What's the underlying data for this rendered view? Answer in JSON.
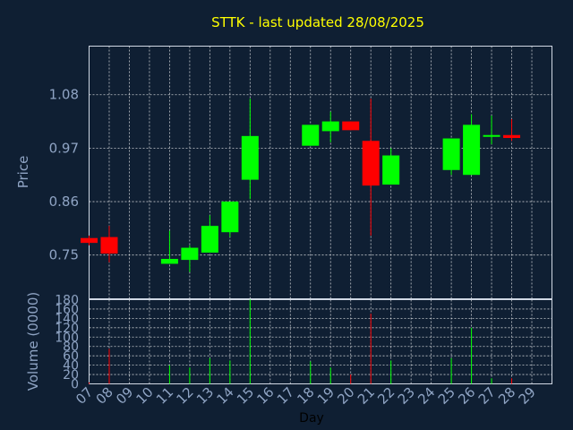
{
  "chart_data": {
    "type": "candlestick",
    "title": "STTK - last updated 28/08/2025",
    "price_axis": {
      "label": "Price",
      "ticks": [
        "0.75",
        "0.86",
        "0.97",
        "1.08"
      ],
      "tick_values": [
        0.75,
        0.86,
        0.97,
        1.08
      ],
      "ylim": [
        0.66,
        1.18
      ]
    },
    "volume_axis": {
      "label": "Volume (0000)",
      "ticks": [
        "0",
        "20",
        "40",
        "60",
        "80",
        "100",
        "120",
        "140",
        "160",
        "180"
      ],
      "tick_values": [
        0,
        20,
        40,
        60,
        80,
        100,
        120,
        140,
        160,
        180
      ],
      "ylim": [
        0,
        180
      ]
    },
    "x_axis": {
      "label": "Day",
      "ticks": [
        "07",
        "08",
        "09",
        "10",
        "11",
        "12",
        "13",
        "14",
        "15",
        "16",
        "17",
        "18",
        "19",
        "20",
        "21",
        "22",
        "23",
        "24",
        "25",
        "26",
        "27",
        "28",
        "29"
      ]
    },
    "grid": true,
    "candles": [
      {
        "day": "07",
        "open": 0.785,
        "close": 0.775,
        "high": 0.79,
        "low": 0.77,
        "volume": 3
      },
      {
        "day": "08",
        "open": 0.787,
        "close": 0.753,
        "high": 0.81,
        "low": 0.735,
        "volume": 75
      },
      {
        "day": "11",
        "open": 0.732,
        "close": 0.742,
        "high": 0.8,
        "low": 0.732,
        "volume": 40
      },
      {
        "day": "12",
        "open": 0.74,
        "close": 0.765,
        "high": 0.77,
        "low": 0.715,
        "volume": 35
      },
      {
        "day": "13",
        "open": 0.755,
        "close": 0.81,
        "high": 0.832,
        "low": 0.755,
        "volume": 55
      },
      {
        "day": "14",
        "open": 0.797,
        "close": 0.86,
        "high": 0.86,
        "low": 0.787,
        "volume": 50
      },
      {
        "day": "15",
        "open": 0.905,
        "close": 0.995,
        "high": 1.072,
        "low": 0.865,
        "volume": 180
      },
      {
        "day": "18",
        "open": 0.975,
        "close": 1.018,
        "high": 1.018,
        "low": 0.975,
        "volume": 48
      },
      {
        "day": "19",
        "open": 1.005,
        "close": 1.025,
        "high": 1.045,
        "low": 0.982,
        "volume": 35
      },
      {
        "day": "20",
        "open": 1.025,
        "close": 1.007,
        "high": 1.025,
        "low": 1.007,
        "volume": 20
      },
      {
        "day": "21",
        "open": 0.985,
        "close": 0.893,
        "high": 1.072,
        "low": 0.79,
        "volume": 150
      },
      {
        "day": "22",
        "open": 0.895,
        "close": 0.955,
        "high": 0.97,
        "low": 0.895,
        "volume": 50
      },
      {
        "day": "25",
        "open": 0.925,
        "close": 0.99,
        "high": 0.99,
        "low": 0.915,
        "volume": 55
      },
      {
        "day": "26",
        "open": 0.915,
        "close": 1.018,
        "high": 1.04,
        "low": 0.915,
        "volume": 120
      },
      {
        "day": "27",
        "open": 0.995,
        "close": 0.997,
        "high": 1.037,
        "low": 0.978,
        "volume": 12
      },
      {
        "day": "28",
        "open": 0.997,
        "close": 0.991,
        "high": 1.03,
        "low": 0.985,
        "volume": 12
      }
    ]
  },
  "colors": {
    "background": "#0f1f33",
    "up": "#00ff00",
    "down": "#ff0000",
    "title": "#ffff00",
    "axis_text": "#8fa4c4"
  }
}
